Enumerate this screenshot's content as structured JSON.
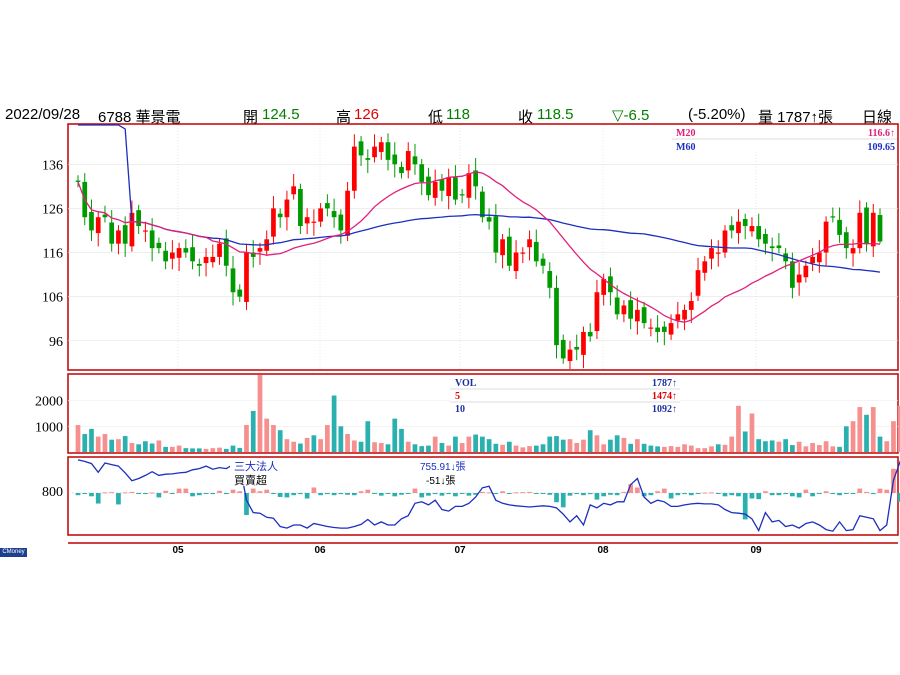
{
  "header": {
    "date": "2022/09/28",
    "code_name": "6788 華景電",
    "open_label": "開",
    "open": "124.5",
    "high_label": "高",
    "high": "126",
    "low_label": "低",
    "low": "118",
    "close_label": "收",
    "close": "118.5",
    "change": "▽-6.5",
    "change_pct": "(-5.20%)",
    "volume": "量 1787↑張",
    "period": "日線"
  },
  "badge": "CMoney",
  "price_panel": {
    "ma20_label": "M20",
    "ma20_value": "116.6↑",
    "ma60_label": "M60",
    "ma60_value": "109.65"
  },
  "volume_panel": {
    "vol_label": "VOL",
    "vol_value": "1787↑",
    "ma5_label": "5",
    "ma5_value": "1474↑",
    "ma10_label": "10",
    "ma10_value": "1092↑"
  },
  "inst_panel": {
    "title": "三大法人",
    "subtitle": "買賣超",
    "cum_value": "755.91↓張",
    "day_value": "-51↓張"
  },
  "colors": {
    "up": "#ff0000",
    "down": "#009a00",
    "ma20": "#e0207a",
    "ma60": "#1c2fbf",
    "vol_up": "#f5908f",
    "vol_down": "#2bb0b0",
    "frame": "#c00000"
  },
  "chart_data": [
    {
      "type": "candlestick",
      "title": "",
      "x_ticks": [
        "05",
        "06",
        "07",
        "08",
        "09"
      ],
      "y_ticks": [
        96,
        106,
        116,
        126,
        136
      ],
      "ylim": [
        89.6,
        144.9
      ],
      "last": {
        "open": 124.5,
        "high": 126,
        "low": 118,
        "close": 118.5
      },
      "closes": [
        132,
        124,
        121,
        124,
        124,
        118,
        121,
        118,
        125,
        122,
        121,
        117,
        117,
        114,
        116,
        117,
        116,
        114,
        113,
        115,
        115,
        118,
        113,
        107,
        106,
        116,
        115,
        117,
        119,
        126,
        124,
        128,
        131,
        122,
        124,
        123,
        126,
        126,
        124,
        121,
        130,
        140,
        138,
        137,
        140,
        141,
        137,
        136,
        134,
        139,
        136,
        132,
        129,
        132,
        130,
        133,
        128,
        129,
        134,
        131,
        124,
        123,
        116,
        119,
        113,
        116,
        116,
        119,
        114,
        113,
        108,
        95,
        92,
        94,
        94,
        98,
        97,
        107,
        110,
        107,
        102,
        104,
        101,
        103,
        100,
        99,
        98,
        98,
        100,
        102,
        103,
        105,
        112,
        114,
        117,
        116,
        121,
        121,
        123,
        122,
        122,
        119,
        118,
        117,
        117,
        114,
        108,
        111,
        113,
        115,
        116,
        123,
        124,
        120,
        117,
        117,
        125,
        118,
        125,
        118.5
      ],
      "ma20": {
        "name": "M20",
        "last": 116.6
      },
      "ma60": {
        "name": "M60",
        "last": 109.65
      }
    },
    {
      "type": "bar",
      "title": "VOL",
      "y_ticks": [
        1000,
        2000
      ],
      "ylim": [
        0,
        3000
      ],
      "values": [
        1050,
        700,
        900,
        600,
        700,
        480,
        500,
        620,
        350,
        300,
        420,
        330,
        450,
        200,
        200,
        250,
        150,
        140,
        140,
        120,
        150,
        170,
        120,
        250,
        160,
        1050,
        1600,
        3000,
        1300,
        1050,
        850,
        500,
        400,
        330,
        550,
        650,
        500,
        1050,
        2200,
        1000,
        700,
        450,
        400,
        1200,
        380,
        350,
        300,
        1300,
        900,
        400,
        300,
        230,
        250,
        600,
        350,
        250,
        600,
        350,
        600,
        680,
        600,
        500,
        320,
        280,
        400,
        250,
        180,
        230,
        250,
        300,
        600,
        620,
        480,
        500,
        350,
        480,
        850,
        650,
        300,
        480,
        650,
        550,
        320,
        500,
        320,
        250,
        220,
        200,
        230,
        200,
        300,
        250,
        150,
        150,
        220,
        300,
        280,
        600,
        1800,
        800,
        1500,
        500,
        420,
        450,
        400,
        500,
        270,
        400,
        220,
        350,
        270,
        420,
        220,
        200,
        1000,
        1200,
        1750,
        1450,
        1750,
        600,
        420,
        1200,
        1800,
        1680,
        1787
      ],
      "ma5": {
        "name": "5",
        "last": 1474
      },
      "ma10": {
        "name": "10",
        "last": 1092
      }
    },
    {
      "type": "bar_line",
      "title": "三大法人 買賣超",
      "y_ticks": [
        800
      ],
      "values": [
        -100,
        -30,
        -150,
        -480,
        30,
        40,
        -520,
        30,
        50,
        -20,
        -50,
        20,
        -200,
        100,
        -20,
        200,
        200,
        -150,
        -100,
        -30,
        -50,
        100,
        -50,
        150,
        80,
        -1000,
        200,
        80,
        150,
        -20,
        -180,
        -200,
        -100,
        -50,
        -250,
        250,
        -100,
        -50,
        -100,
        -50,
        -80,
        -100,
        80,
        150,
        -30,
        -120,
        -20,
        -150,
        -80,
        -30,
        200,
        -200,
        -120,
        -50,
        -120,
        -50,
        -150,
        -30,
        -120,
        -80,
        50,
        30,
        -40,
        80,
        -20,
        30,
        40,
        50,
        -20,
        -30,
        -80,
        -420,
        -650,
        -120,
        -30,
        -100,
        -50,
        -300,
        -150,
        -80,
        -100,
        50,
        400,
        250,
        -150,
        -100,
        80,
        200,
        -250,
        -100,
        -50,
        -100,
        -20,
        20,
        30,
        -30,
        -150,
        -100,
        -150,
        -1200,
        -250,
        -280,
        80,
        -100,
        -100,
        -50,
        -150,
        -200,
        150,
        -150,
        -20,
        80,
        -40,
        -100,
        -30,
        -20,
        200,
        50,
        -50,
        200,
        150,
        1100,
        -400,
        200,
        -51
      ],
      "cumulative": [
        1100,
        1050,
        980,
        700,
        1000,
        950,
        900,
        680,
        430,
        500,
        600,
        720,
        600,
        640,
        650,
        680,
        700,
        780,
        820,
        900,
        800,
        850,
        820,
        950,
        950,
        -200,
        -600,
        -620,
        -750,
        -780,
        -1050,
        -1100,
        -1000,
        -1000,
        -1100,
        -950,
        -1000,
        -1050,
        -1080,
        -1100,
        -1100,
        -1050,
        -980,
        -820,
        -1000,
        -900,
        -1000,
        -1000,
        -800,
        -700,
        -300,
        -250,
        -350,
        -200,
        -500,
        -550,
        -400,
        -400,
        -300,
        -100,
        200,
        250,
        -200,
        -300,
        -350,
        -380,
        -400,
        -420,
        -400,
        -380,
        -400,
        -450,
        -650,
        -900,
        -700,
        -1000,
        -350,
        -450,
        -300,
        -350,
        -250,
        -250,
        300,
        500,
        -100,
        -300,
        -200,
        -250,
        -400,
        -400,
        -350,
        -320,
        -300,
        -320,
        -320,
        -350,
        -500,
        -600,
        -620,
        -650,
        -800,
        -1180,
        -600,
        -900,
        -850,
        -1050,
        -1000,
        -1100,
        -950,
        -900,
        -1000,
        -1150,
        -1200,
        -900,
        -1180,
        -1150,
        -700,
        -750,
        -800,
        -1180,
        -1000,
        450,
        1050,
        600,
        755.91
      ]
    }
  ]
}
